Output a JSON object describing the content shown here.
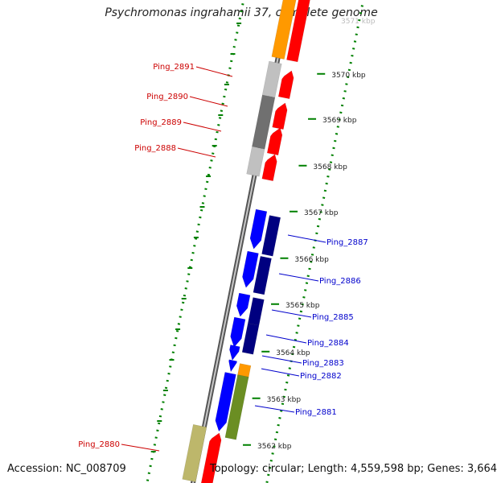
{
  "title": "Psychromonas ingrahamii 37, complete genome",
  "accession": "Accession: NC_008709",
  "summary": "Topology: circular; Length: 4,559,598 bp; Genes: 3,664",
  "top_partial_label": "3571 kbp",
  "kbp_ticks": [
    {
      "label": "3570 kbp",
      "kbp": 3570
    },
    {
      "label": "3569 kbp",
      "kbp": 3569
    },
    {
      "label": "3568 kbp",
      "kbp": 3568
    },
    {
      "label": "3567 kbp",
      "kbp": 3567
    },
    {
      "label": "3566 kbp",
      "kbp": 3566
    },
    {
      "label": "3565 kbp",
      "kbp": 3565
    },
    {
      "label": "3564 kbp",
      "kbp": 3564
    },
    {
      "label": "3563 kbp",
      "kbp": 3563
    },
    {
      "label": "3562 kbp",
      "kbp": 3562
    }
  ],
  "gene_labels": [
    {
      "text": "Ping_2891",
      "color": "#cc0000"
    },
    {
      "text": "Ping_2890",
      "color": "#cc0000"
    },
    {
      "text": "Ping_2889",
      "color": "#cc0000"
    },
    {
      "text": "Ping_2888",
      "color": "#cc0000"
    },
    {
      "text": "Ping_2887",
      "color": "#0000cc"
    },
    {
      "text": "Ping_2886",
      "color": "#0000cc"
    },
    {
      "text": "Ping_2885",
      "color": "#0000cc"
    },
    {
      "text": "Ping_2884",
      "color": "#0000cc"
    },
    {
      "text": "Ping_2883",
      "color": "#0000cc"
    },
    {
      "text": "Ping_2882",
      "color": "#0000cc"
    },
    {
      "text": "Ping_2881",
      "color": "#0000cc"
    },
    {
      "text": "Ping_2880",
      "color": "#cc0000"
    }
  ],
  "colors": {
    "forward_strand": "#ff0000",
    "reverse_strand": "#0000ff",
    "cog_dark_blue": "#000080",
    "cog_orange": "#ff9900",
    "cog_grey": "#c0c0c0",
    "cog_dark_grey": "#707070",
    "cog_olive": "#6b8e23",
    "cog_khaki": "#bdb76b",
    "backbone": "#808080",
    "gc_dots": "#008000"
  }
}
